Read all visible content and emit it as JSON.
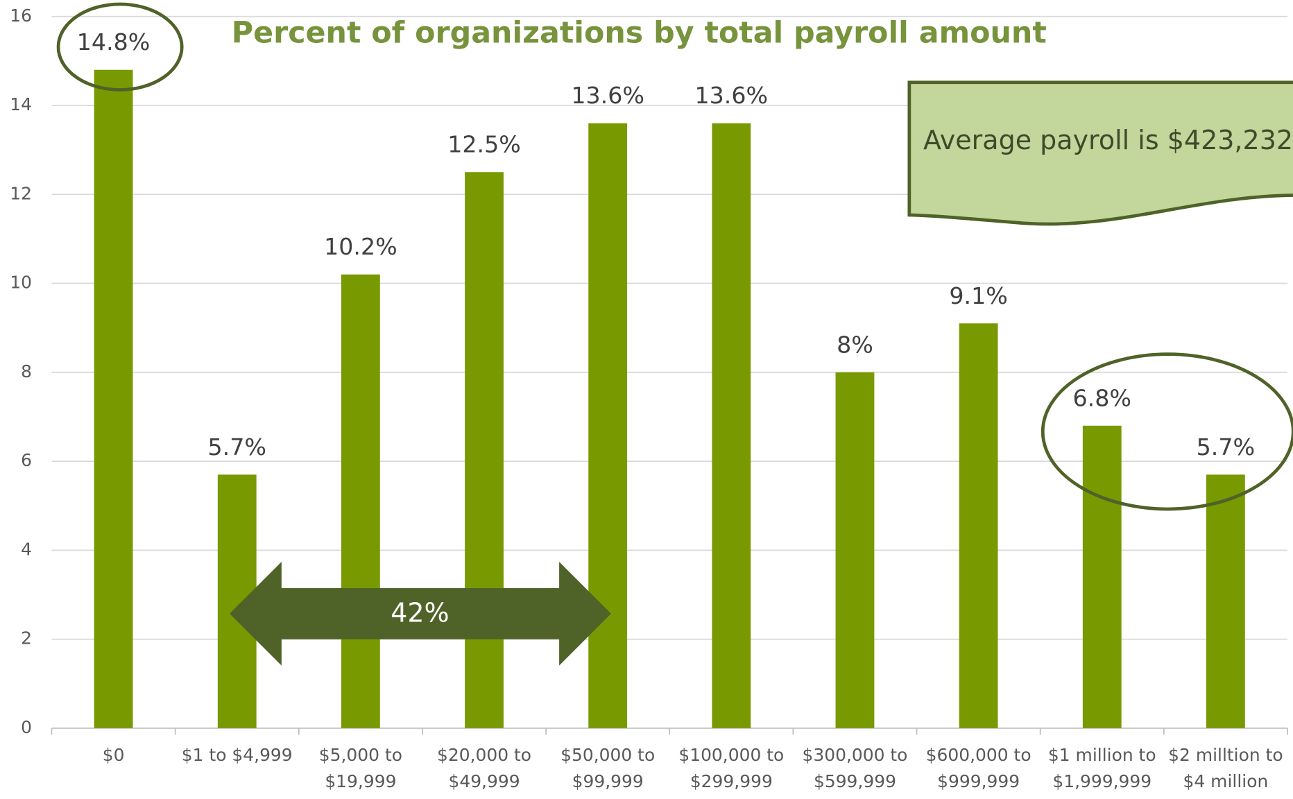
{
  "chart_data": {
    "type": "bar",
    "title": "Percent of organizations by total payroll amount",
    "categories": [
      "$0",
      "$1 to $4,999",
      "$5,000 to $19,999",
      "$20,000 to $49,999",
      "$50,000 to $99,999",
      "$100,000 to $299,999",
      "$300,000 to $599,999",
      "$600,000 to $999,999",
      "$1 million to $1,999,999",
      "$2 milltion to $4 million"
    ],
    "values": [
      14.8,
      5.7,
      10.2,
      12.5,
      13.6,
      13.6,
      8,
      9.1,
      6.8,
      5.7
    ],
    "value_labels": [
      "14.8%",
      "5.7%",
      "10.2%",
      "12.5%",
      "13.6%",
      "13.6%",
      "8%",
      "9.1%",
      "6.8%",
      "5.7%"
    ],
    "color": "#789a00",
    "ylim": [
      0,
      16
    ],
    "yticks": [
      0,
      2,
      4,
      6,
      8,
      10,
      12,
      14,
      16
    ],
    "grid": true,
    "annotations": [
      "Average payroll is $423,232",
      "42%"
    ]
  }
}
